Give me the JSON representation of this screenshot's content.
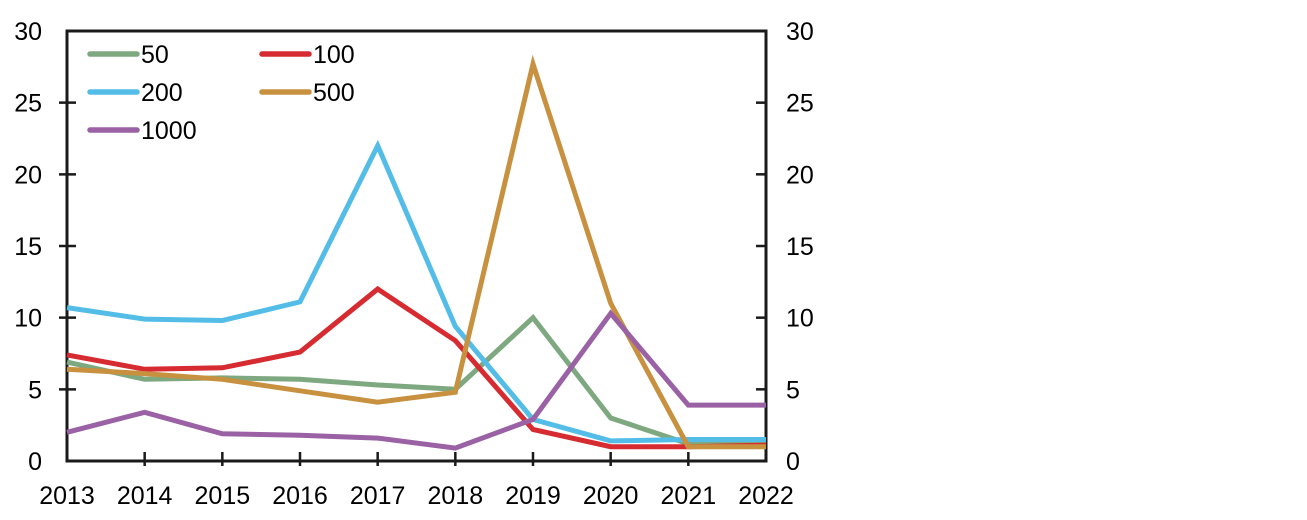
{
  "figure": {
    "background": "#ffffff",
    "axis_color": "#1a1a1a",
    "text_color": "#000000"
  },
  "chart_data": {
    "type": "line",
    "title": "",
    "xlabel": "",
    "ylabel": "",
    "x_categories": [
      "2013",
      "2014",
      "2015",
      "2016",
      "2017",
      "2018",
      "2019",
      "2020",
      "2021",
      "2022"
    ],
    "series": [
      {
        "name": "50",
        "color": "#7EA87F",
        "values": [
          6.9,
          5.7,
          5.8,
          5.7,
          5.3,
          5.0,
          10.0,
          3.0,
          1.2,
          1.3
        ]
      },
      {
        "name": "100",
        "color": "#D62B30",
        "values": [
          7.4,
          6.4,
          6.5,
          7.6,
          12.0,
          8.4,
          2.2,
          1.0,
          1.0,
          1.1
        ]
      },
      {
        "name": "200",
        "color": "#53BDE8",
        "values": [
          10.7,
          9.9,
          9.8,
          11.1,
          22.0,
          9.4,
          2.9,
          1.4,
          1.5,
          1.5
        ]
      },
      {
        "name": "500",
        "color": "#C79140",
        "values": [
          6.4,
          6.1,
          5.7,
          4.9,
          4.1,
          4.8,
          27.7,
          11.0,
          1.0,
          1.0
        ]
      },
      {
        "name": "1000",
        "color": "#9A61A5",
        "values": [
          2.0,
          3.4,
          1.9,
          1.8,
          1.6,
          0.9,
          2.9,
          10.3,
          3.9,
          3.9
        ]
      }
    ],
    "ylim": [
      0,
      30
    ],
    "yticks": [
      0,
      5,
      10,
      15,
      20,
      25,
      30
    ],
    "y_axis_right": true,
    "grid": false,
    "legend": {
      "position": "top-left-inside",
      "columns": 2,
      "entries": [
        "50",
        "100",
        "200",
        "500",
        "1000"
      ]
    }
  }
}
